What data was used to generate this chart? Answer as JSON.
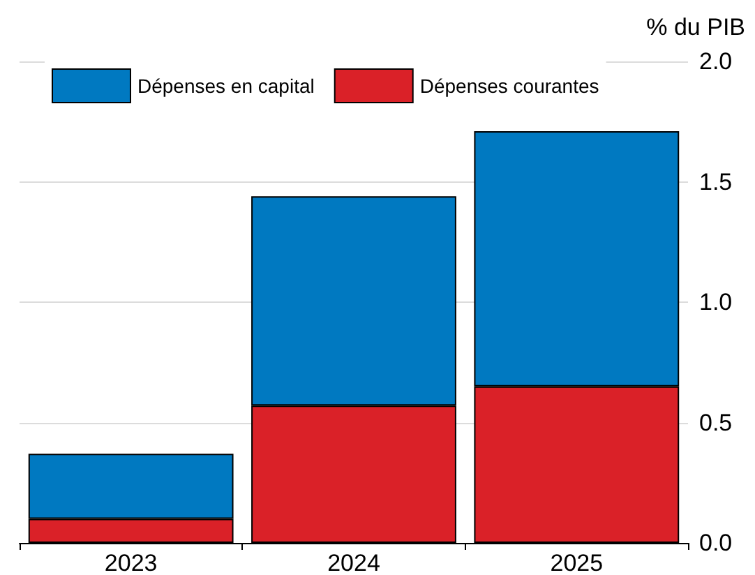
{
  "chart_data": {
    "type": "bar",
    "stacked": true,
    "ylabel": "% du PIB",
    "categories": [
      "2023",
      "2024",
      "2025"
    ],
    "series": [
      {
        "name": "Dépenses courantes",
        "color": "#da2128",
        "values": [
          0.1,
          0.57,
          0.65
        ]
      },
      {
        "name": "Dépenses en capital",
        "color": "#0079c1",
        "values": [
          0.27,
          0.87,
          1.06
        ]
      }
    ],
    "ylim": [
      0,
      2
    ],
    "yticks": [
      {
        "value": 0,
        "label": "0.0"
      },
      {
        "value": 0.5,
        "label": "0.5"
      },
      {
        "value": 1,
        "label": "1.0"
      },
      {
        "value": 1.5,
        "label": "1.5"
      },
      {
        "value": 2,
        "label": "2.0"
      }
    ],
    "grid": true,
    "legend": "top left"
  }
}
